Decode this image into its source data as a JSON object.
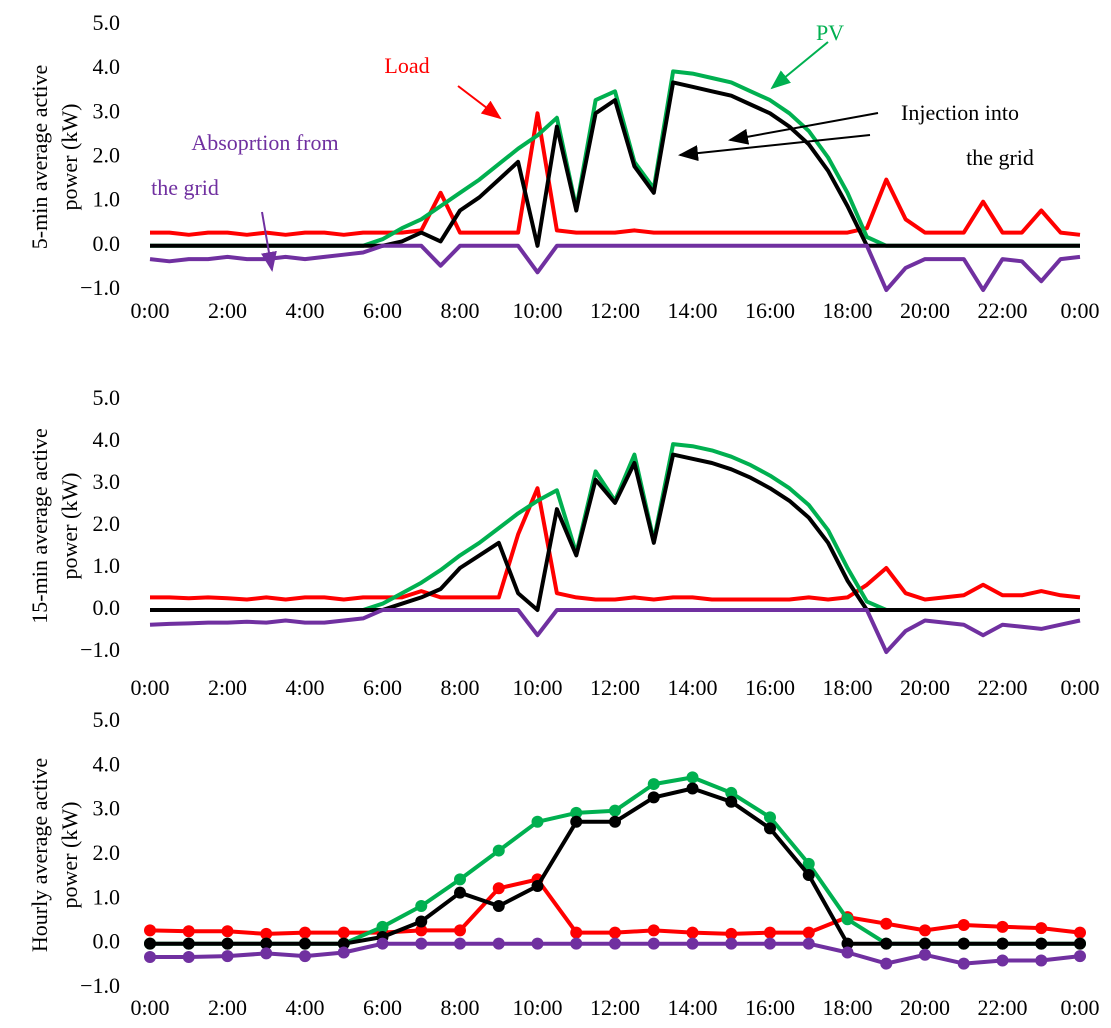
{
  "chart_data": [
    {
      "type": "line",
      "ylabel": [
        "5-min average active",
        "power (kW)"
      ],
      "annotations": [
        {
          "text": "PV",
          "color": "#00b050"
        },
        {
          "text": "Load",
          "color": "#ff0000"
        },
        {
          "text": "Injection into",
          "color": "#000000"
        },
        {
          "text": "the grid",
          "color": "#000000"
        },
        {
          "text": "Absoprtion  from",
          "color": "#7030a0"
        },
        {
          "text": "the grid",
          "color": "#7030a0"
        }
      ],
      "x": [
        0,
        0.5,
        1,
        1.5,
        2,
        2.5,
        3,
        3.5,
        4,
        4.5,
        5,
        5.5,
        6,
        6.5,
        7,
        7.5,
        8,
        8.5,
        9,
        9.5,
        10,
        10.5,
        11,
        11.5,
        12,
        12.5,
        13,
        13.5,
        14,
        14.5,
        15,
        15.5,
        16,
        16.5,
        17,
        17.5,
        18,
        18.5,
        19,
        19.5,
        20,
        20.5,
        21,
        21.5,
        22,
        22.5,
        23,
        23.5,
        24
      ],
      "xlim": [
        0,
        24
      ],
      "xticks": [
        {
          "value": 0,
          "label": "0:00"
        },
        {
          "value": 2,
          "label": "2:00"
        },
        {
          "value": 4,
          "label": "4:00"
        },
        {
          "value": 6,
          "label": "6:00"
        },
        {
          "value": 8,
          "label": "8:00"
        },
        {
          "value": 10,
          "label": "10:00"
        },
        {
          "value": 12,
          "label": "12:00"
        },
        {
          "value": 14,
          "label": "14:00"
        },
        {
          "value": 16,
          "label": "16:00"
        },
        {
          "value": 18,
          "label": "18:00"
        },
        {
          "value": 20,
          "label": "20:00"
        },
        {
          "value": 22,
          "label": "22:00"
        },
        {
          "value": 24,
          "label": "0:00"
        }
      ],
      "ylim": [
        -1,
        5
      ],
      "yticks": [
        {
          "value": 5,
          "label": "5.0"
        },
        {
          "value": 4,
          "label": "4.0"
        },
        {
          "value": 3,
          "label": "3.0"
        },
        {
          "value": 2,
          "label": "2.0"
        },
        {
          "value": 1,
          "label": "1.0"
        },
        {
          "value": 0,
          "label": "0.0"
        },
        {
          "value": -1,
          "label": "−1.0"
        }
      ],
      "markers": false,
      "series": [
        {
          "color": "#ff0000",
          "values": [
            0.3,
            0.3,
            0.25,
            0.3,
            0.3,
            0.25,
            0.3,
            0.25,
            0.3,
            0.3,
            0.25,
            0.3,
            0.3,
            0.3,
            0.35,
            1.2,
            0.3,
            0.3,
            0.3,
            0.3,
            3.0,
            0.35,
            0.3,
            0.3,
            0.3,
            0.35,
            0.3,
            0.3,
            0.3,
            0.3,
            0.3,
            0.3,
            0.3,
            0.3,
            0.3,
            0.3,
            0.3,
            0.4,
            1.5,
            0.6,
            0.3,
            0.3,
            0.3,
            1.0,
            0.3,
            0.3,
            0.8,
            0.3,
            0.25
          ]
        },
        {
          "color": "#00b050",
          "values": [
            0,
            0,
            0,
            0,
            0,
            0,
            0,
            0,
            0,
            0,
            0,
            0,
            0.15,
            0.4,
            0.6,
            0.9,
            1.2,
            1.5,
            1.85,
            2.2,
            2.5,
            2.9,
            0.85,
            3.3,
            3.5,
            1.9,
            1.3,
            3.95,
            3.9,
            3.8,
            3.7,
            3.5,
            3.3,
            3.0,
            2.6,
            2.0,
            1.2,
            0.2,
            0,
            0,
            0,
            0,
            0,
            0,
            0,
            0,
            0,
            0,
            0
          ]
        },
        {
          "color": "#000000",
          "values": [
            0,
            0,
            0,
            0,
            0,
            0,
            0,
            0,
            0,
            0,
            0,
            0,
            0,
            0.1,
            0.3,
            0.1,
            0.8,
            1.1,
            1.5,
            1.9,
            0,
            2.7,
            0.8,
            3.0,
            3.3,
            1.8,
            1.2,
            3.7,
            3.6,
            3.5,
            3.4,
            3.2,
            3.0,
            2.7,
            2.3,
            1.7,
            0.9,
            0,
            0,
            0,
            0,
            0,
            0,
            0,
            0,
            0,
            0,
            0,
            0
          ]
        },
        {
          "color": "#7030a0",
          "values": [
            -0.3,
            -0.35,
            -0.3,
            -0.3,
            -0.25,
            -0.3,
            -0.3,
            -0.25,
            -0.3,
            -0.25,
            -0.2,
            -0.15,
            0,
            0,
            0,
            -0.45,
            0,
            0,
            0,
            0,
            -0.6,
            0,
            0,
            0,
            0,
            0,
            0,
            0,
            0,
            0,
            0,
            0,
            0,
            0,
            0,
            0,
            0,
            0,
            -1.0,
            -0.5,
            -0.3,
            -0.3,
            -0.3,
            -1.0,
            -0.3,
            -0.35,
            -0.8,
            -0.3,
            -0.25
          ]
        }
      ]
    },
    {
      "type": "line",
      "ylabel": [
        "15-min average active",
        "power (kW)"
      ],
      "x": [
        0,
        0.5,
        1,
        1.5,
        2,
        2.5,
        3,
        3.5,
        4,
        4.5,
        5,
        5.5,
        6,
        6.5,
        7,
        7.5,
        8,
        8.5,
        9,
        9.5,
        10,
        10.5,
        11,
        11.5,
        12,
        12.5,
        13,
        13.5,
        14,
        14.5,
        15,
        15.5,
        16,
        16.5,
        17,
        17.5,
        18,
        18.5,
        19,
        19.5,
        20,
        20.5,
        21,
        21.5,
        22,
        22.5,
        23,
        23.5,
        24
      ],
      "xlim": [
        0,
        24
      ],
      "xticks": [
        {
          "value": 0,
          "label": "0:00"
        },
        {
          "value": 2,
          "label": "2:00"
        },
        {
          "value": 4,
          "label": "4:00"
        },
        {
          "value": 6,
          "label": "6:00"
        },
        {
          "value": 8,
          "label": "8:00"
        },
        {
          "value": 10,
          "label": "10:00"
        },
        {
          "value": 12,
          "label": "12:00"
        },
        {
          "value": 14,
          "label": "14:00"
        },
        {
          "value": 16,
          "label": "16:00"
        },
        {
          "value": 18,
          "label": "18:00"
        },
        {
          "value": 20,
          "label": "20:00"
        },
        {
          "value": 22,
          "label": "22:00"
        },
        {
          "value": 24,
          "label": "0:00"
        }
      ],
      "ylim": [
        -1,
        5
      ],
      "yticks": [
        {
          "value": 5,
          "label": "5.0"
        },
        {
          "value": 4,
          "label": "4.0"
        },
        {
          "value": 3,
          "label": "3.0"
        },
        {
          "value": 2,
          "label": "2.0"
        },
        {
          "value": 1,
          "label": "1.0"
        },
        {
          "value": 0,
          "label": "0.0"
        },
        {
          "value": -1,
          "label": "−1.0"
        }
      ],
      "markers": false,
      "series": [
        {
          "color": "#ff0000",
          "values": [
            0.3,
            0.3,
            0.28,
            0.3,
            0.28,
            0.25,
            0.3,
            0.25,
            0.3,
            0.3,
            0.25,
            0.3,
            0.3,
            0.3,
            0.45,
            0.3,
            0.3,
            0.3,
            0.3,
            1.8,
            2.9,
            0.4,
            0.3,
            0.25,
            0.25,
            0.3,
            0.25,
            0.3,
            0.3,
            0.25,
            0.25,
            0.25,
            0.25,
            0.25,
            0.3,
            0.25,
            0.3,
            0.6,
            1.0,
            0.4,
            0.25,
            0.3,
            0.35,
            0.6,
            0.35,
            0.35,
            0.45,
            0.35,
            0.3
          ]
        },
        {
          "color": "#00b050",
          "values": [
            0,
            0,
            0,
            0,
            0,
            0,
            0,
            0,
            0,
            0,
            0,
            0,
            0.15,
            0.4,
            0.65,
            0.95,
            1.3,
            1.6,
            1.95,
            2.3,
            2.6,
            2.85,
            1.35,
            3.3,
            2.6,
            3.7,
            1.65,
            3.95,
            3.9,
            3.8,
            3.65,
            3.45,
            3.2,
            2.9,
            2.5,
            1.9,
            1.0,
            0.2,
            0,
            0,
            0,
            0,
            0,
            0,
            0,
            0,
            0,
            0,
            0
          ]
        },
        {
          "color": "#000000",
          "values": [
            0,
            0,
            0,
            0,
            0,
            0,
            0,
            0,
            0,
            0,
            0,
            0,
            0,
            0.15,
            0.3,
            0.5,
            1.0,
            1.3,
            1.6,
            0.4,
            0,
            2.4,
            1.3,
            3.1,
            2.55,
            3.5,
            1.6,
            3.7,
            3.6,
            3.5,
            3.35,
            3.15,
            2.9,
            2.6,
            2.2,
            1.6,
            0.7,
            0,
            0,
            0,
            0,
            0,
            0,
            0,
            0,
            0,
            0,
            0,
            0
          ]
        },
        {
          "color": "#7030a0",
          "values": [
            -0.35,
            -0.33,
            -0.32,
            -0.3,
            -0.3,
            -0.28,
            -0.3,
            -0.25,
            -0.3,
            -0.3,
            -0.25,
            -0.2,
            0,
            0,
            0,
            0,
            0,
            0,
            0,
            0,
            -0.6,
            0,
            0,
            0,
            0,
            0,
            0,
            0,
            0,
            0,
            0,
            0,
            0,
            0,
            0,
            0,
            0,
            0,
            -1.0,
            -0.5,
            -0.25,
            -0.3,
            -0.35,
            -0.6,
            -0.35,
            -0.4,
            -0.45,
            -0.35,
            -0.25
          ]
        }
      ]
    },
    {
      "type": "line",
      "ylabel": [
        "Hourly average active",
        "power (kW)"
      ],
      "x": [
        0,
        1,
        2,
        3,
        4,
        5,
        6,
        7,
        8,
        9,
        10,
        11,
        12,
        13,
        14,
        15,
        16,
        17,
        18,
        19,
        20,
        21,
        22,
        23,
        24
      ],
      "xlim": [
        0,
        24
      ],
      "xticks": [
        {
          "value": 0,
          "label": "0:00"
        },
        {
          "value": 2,
          "label": "2:00"
        },
        {
          "value": 4,
          "label": "4:00"
        },
        {
          "value": 6,
          "label": "6:00"
        },
        {
          "value": 8,
          "label": "8:00"
        },
        {
          "value": 10,
          "label": "10:00"
        },
        {
          "value": 12,
          "label": "12:00"
        },
        {
          "value": 14,
          "label": "14:00"
        },
        {
          "value": 16,
          "label": "16:00"
        },
        {
          "value": 18,
          "label": "18:00"
        },
        {
          "value": 20,
          "label": "20:00"
        },
        {
          "value": 22,
          "label": "22:00"
        },
        {
          "value": 24,
          "label": "0:00"
        }
      ],
      "ylim": [
        -1,
        5
      ],
      "yticks": [
        {
          "value": 5,
          "label": "5.0"
        },
        {
          "value": 4,
          "label": "4.0"
        },
        {
          "value": 3,
          "label": "3.0"
        },
        {
          "value": 2,
          "label": "2.0"
        },
        {
          "value": 1,
          "label": "1.0"
        },
        {
          "value": 0,
          "label": "0.0"
        },
        {
          "value": -1,
          "label": "−1.0"
        }
      ],
      "markers": true,
      "series": [
        {
          "color": "#ff0000",
          "values": [
            0.3,
            0.28,
            0.28,
            0.22,
            0.25,
            0.25,
            0.25,
            0.3,
            0.3,
            1.25,
            1.45,
            0.25,
            0.25,
            0.3,
            0.25,
            0.22,
            0.25,
            0.25,
            0.6,
            0.45,
            0.3,
            0.42,
            0.38,
            0.35,
            0.25
          ]
        },
        {
          "color": "#00b050",
          "values": [
            0,
            0,
            0,
            0,
            0,
            0,
            0.38,
            0.85,
            1.45,
            2.1,
            2.75,
            2.95,
            3.0,
            3.6,
            3.75,
            3.4,
            2.85,
            1.8,
            0.55,
            0,
            0,
            0,
            0,
            0,
            0
          ]
        },
        {
          "color": "#000000",
          "values": [
            0,
            0,
            0,
            0,
            0,
            0,
            0.15,
            0.5,
            1.15,
            0.85,
            1.3,
            2.75,
            2.75,
            3.3,
            3.5,
            3.2,
            2.6,
            1.55,
            0,
            0,
            0,
            0,
            0,
            0,
            0
          ]
        },
        {
          "color": "#7030a0",
          "values": [
            -0.3,
            -0.3,
            -0.28,
            -0.22,
            -0.28,
            -0.2,
            0,
            0,
            0,
            0,
            0,
            0,
            0,
            0,
            0,
            0,
            0,
            0,
            -0.2,
            -0.45,
            -0.25,
            -0.45,
            -0.38,
            -0.38,
            -0.28
          ]
        }
      ]
    }
  ]
}
